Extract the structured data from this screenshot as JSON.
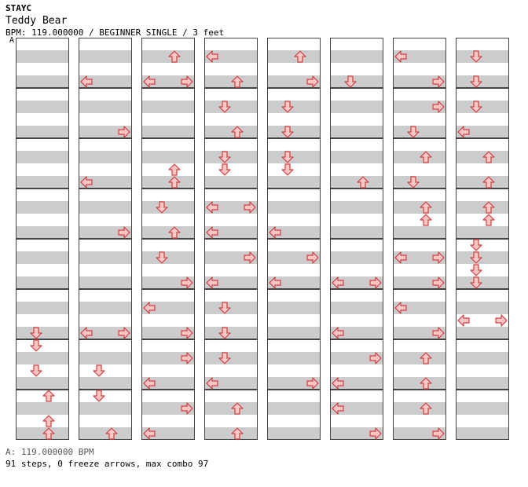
{
  "header": {
    "artist": "STAYC",
    "title": "Teddy Bear",
    "meta": "BPM: 119.000000 / BEGINNER SINGLE / 3 feet"
  },
  "chart_markers": {
    "bpm_label": "A"
  },
  "footer": {
    "bpm_info": "A: 119.000000 BPM",
    "stats": "91 steps, 0 freeze arrows, max combo 97"
  },
  "colors": {
    "arrow_fill": "#ffc6c6",
    "arrow_stroke": "#d23c3c",
    "stripe_gray": "#cccccc",
    "measure_border": "#444444",
    "bpm_line": "#4a90d9"
  },
  "icons": {
    "left": "arrow-left-icon",
    "down": "arrow-down-icon",
    "up": "arrow-up-icon",
    "right": "arrow-right-icon"
  },
  "chart_data": {
    "type": "step-chart",
    "columns_order": [
      "left",
      "down",
      "up",
      "right"
    ],
    "rows_per_measure": 4,
    "arrows": [
      {
        "m": 1,
        "r": 3,
        "d": "down"
      },
      {
        "m": 1,
        "r": 4,
        "d": "down"
      },
      {
        "m": 1,
        "r": 5,
        "d": "up"
      },
      {
        "m": 1,
        "r": 6,
        "d": "up"
      },
      {
        "m": 1,
        "r": 7,
        "d": "up"
      },
      {
        "m": 2,
        "r": 1,
        "d": "left"
      },
      {
        "m": 2,
        "r": 2,
        "d": "right"
      },
      {
        "m": 2,
        "r": 3,
        "d": "right"
      },
      {
        "m": 2,
        "r": 4,
        "d": "left"
      },
      {
        "m": 2,
        "r": 4,
        "d": "right"
      },
      {
        "m": 2,
        "r": 5,
        "d": "left"
      },
      {
        "m": 2,
        "r": 6,
        "d": "down"
      },
      {
        "m": 2,
        "r": 6,
        "d": "right"
      },
      {
        "m": 2,
        "r": 7,
        "d": "up"
      },
      {
        "m": 3,
        "r": 0,
        "d": "up"
      },
      {
        "m": 3,
        "r": 1,
        "d": "left"
      },
      {
        "m": 3,
        "r": 2,
        "d": "up"
      },
      {
        "m": 3,
        "r": 2,
        "d": "up"
      },
      {
        "m": 3,
        "r": 3,
        "d": "down"
      },
      {
        "m": 3,
        "r": 4,
        "d": "right"
      },
      {
        "m": 3,
        "r": 6,
        "d": "left"
      },
      {
        "m": 3,
        "r": 7,
        "d": "left"
      },
      {
        "m": 4,
        "r": 0,
        "d": "left"
      },
      {
        "m": 4,
        "r": 2,
        "d": "down"
      },
      {
        "m": 4,
        "r": 2,
        "d": "down"
      },
      {
        "m": 4,
        "r": 3,
        "d": "down"
      },
      {
        "m": 4,
        "r": 4,
        "d": "right"
      },
      {
        "m": 4,
        "r": 4,
        "d": "left"
      },
      {
        "m": 4,
        "r": 5,
        "d": "down"
      },
      {
        "m": 4,
        "r": 6,
        "d": "left"
      },
      {
        "m": 4,
        "r": 7,
        "d": "up"
      },
      {
        "m": 5,
        "r": 0,
        "d": "up"
      },
      {
        "m": 5,
        "r": 2,
        "d": "down"
      },
      {
        "m": 5,
        "r": 2,
        "d": "down"
      },
      {
        "m": 5,
        "r": 3,
        "d": "down"
      },
      {
        "m": 5,
        "r": 4,
        "d": "left"
      },
      {
        "m": 5,
        "r": 4,
        "d": "right"
      },
      {
        "m": 5,
        "r": 6,
        "d": "left"
      },
      {
        "m": 5,
        "r": 7,
        "d": "up"
      },
      {
        "m": 6,
        "r": 0,
        "d": "left"
      },
      {
        "m": 6,
        "r": 1,
        "d": "down"
      },
      {
        "m": 6,
        "r": 3,
        "d": "up"
      },
      {
        "m": 6,
        "r": 5,
        "d": "left"
      },
      {
        "m": 6,
        "r": 6,
        "d": "left"
      },
      {
        "m": 6,
        "r": 7,
        "d": "right"
      },
      {
        "m": 7,
        "r": 0,
        "d": "left"
      },
      {
        "m": 7,
        "r": 1,
        "d": "right"
      },
      {
        "m": 7,
        "r": 2,
        "d": "down"
      },
      {
        "m": 7,
        "r": 3,
        "d": "up"
      },
      {
        "m": 7,
        "r": 3,
        "d": "up"
      },
      {
        "m": 7,
        "r": 4,
        "d": "left"
      },
      {
        "m": 7,
        "r": 5,
        "d": "right"
      },
      {
        "m": 7,
        "r": 6,
        "d": "right"
      },
      {
        "m": 7,
        "r": 7,
        "d": "right"
      },
      {
        "m": 8,
        "r": 0,
        "d": "down"
      },
      {
        "m": 8,
        "r": 1,
        "d": "down"
      },
      {
        "m": 8,
        "r": 2,
        "d": "left"
      },
      {
        "m": 8,
        "r": 3,
        "d": "up"
      },
      {
        "m": 8,
        "r": 3,
        "d": "up"
      },
      {
        "m": 8,
        "r": 4,
        "d": "down"
      },
      {
        "m": 8,
        "r": 4,
        "d": "down"
      },
      {
        "m": 8,
        "r": 5,
        "d": "down"
      },
      {
        "m": 8,
        "r": 6,
        "d": "left"
      },
      {
        "m": 8,
        "r": 6,
        "d": "right"
      }
    ]
  }
}
